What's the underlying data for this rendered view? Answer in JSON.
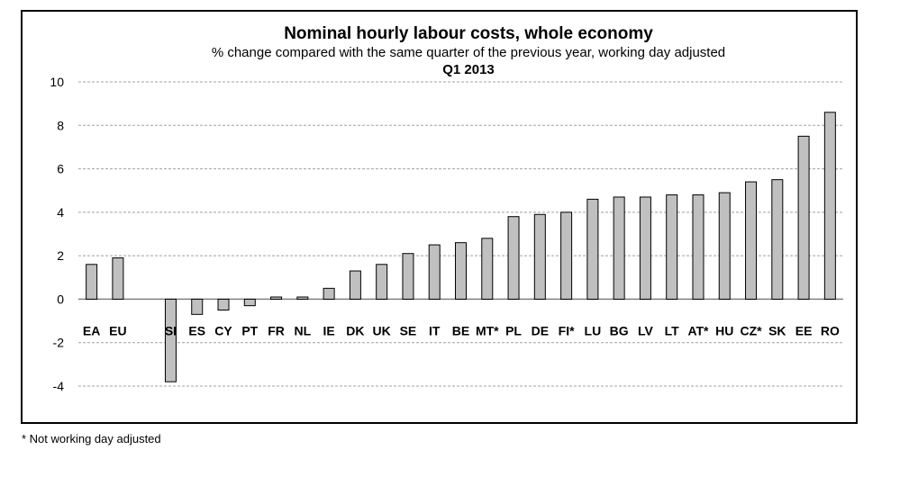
{
  "chart_data": {
    "type": "bar",
    "title": "Nominal hourly labour costs, whole economy",
    "subtitle": "% change compared with the same quarter of the previous year, working day adjusted",
    "period": "Q1 2013",
    "xlabel": "",
    "ylabel": "",
    "ylim": [
      -4,
      10
    ],
    "yticks": [
      -4,
      -2,
      0,
      2,
      4,
      6,
      8,
      10
    ],
    "grid": true,
    "categories": [
      "EA",
      "EU",
      "",
      "SI",
      "ES",
      "CY",
      "PT",
      "FR",
      "NL",
      "IE",
      "DK",
      "UK",
      "SE",
      "IT",
      "BE",
      "MT*",
      "PL",
      "DE",
      "FI*",
      "LU",
      "BG",
      "LV",
      "LT",
      "AT*",
      "HU",
      "CZ*",
      "SK",
      "EE",
      "RO"
    ],
    "values": [
      1.6,
      1.9,
      null,
      -3.8,
      -0.7,
      -0.5,
      -0.3,
      0.1,
      0.1,
      0.5,
      1.3,
      1.6,
      2.1,
      2.5,
      2.6,
      2.8,
      3.8,
      3.9,
      4.0,
      4.6,
      4.7,
      4.7,
      4.8,
      4.8,
      4.9,
      5.4,
      5.5,
      7.5,
      8.6
    ],
    "colors": {
      "bar": "#c0c0c0",
      "bar_stroke": "#000000",
      "grid": "#a0a0a0",
      "axis": "#808080"
    }
  },
  "footnote": "* Not working day adjusted"
}
